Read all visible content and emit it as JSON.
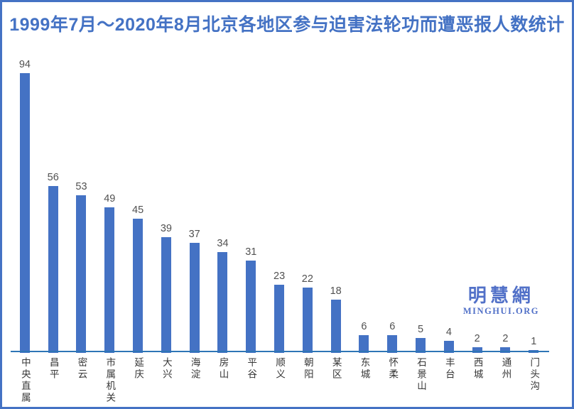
{
  "title": "1999年7月～2020年8月北京各地区参与迫害法轮功而遭恶报人数统计",
  "watermark": {
    "cn": "明慧網",
    "en": "MINGHUI.ORG"
  },
  "colors": {
    "bar": "#4472C4",
    "axis": "#2E75B6",
    "title": "#4472C4",
    "frame": "#4472C4",
    "value_label": "#515151",
    "category_label": "#363636",
    "watermark": "#5271c8"
  },
  "chart_data": {
    "type": "bar",
    "title": "1999年7月～2020年8月北京各地区参与迫害法轮功而遭恶报人数统计",
    "categories": [
      "中央直属",
      "昌平",
      "密云",
      "市属机关",
      "延庆",
      "大兴",
      "海淀",
      "房山",
      "平谷",
      "顺义",
      "朝阳",
      "某区",
      "东城",
      "怀柔",
      "石景山",
      "丰台",
      "西城",
      "通州",
      "门头沟"
    ],
    "values": [
      94,
      56,
      53,
      49,
      45,
      39,
      37,
      34,
      31,
      23,
      22,
      18,
      6,
      6,
      5,
      4,
      2,
      2,
      1
    ],
    "xlabel": "",
    "ylabel": "",
    "ylim": [
      0,
      100
    ],
    "grid": false,
    "legend": "none",
    "value_labels_shown": true,
    "orientation": "vertical"
  }
}
